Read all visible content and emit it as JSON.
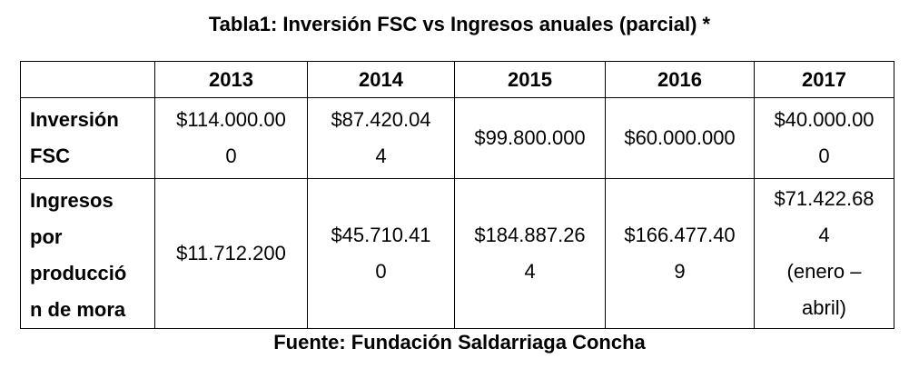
{
  "title": "Tabla1: Inversión FSC vs Ingresos anuales (parcial) *",
  "source": "Fuente: Fundación Saldarriaga Concha",
  "table": {
    "header": [
      "",
      "2013",
      "2014",
      "2015",
      "2016",
      "2017"
    ],
    "rows": [
      {
        "label_lines": [
          "Inversión",
          "FSC"
        ],
        "cells": [
          [
            "$114.000.00",
            "0"
          ],
          [
            "$87.420.04",
            "4"
          ],
          [
            "$99.800.000"
          ],
          [
            "$60.000.000"
          ],
          [
            "$40.000.00",
            "0"
          ]
        ]
      },
      {
        "label_lines": [
          "Ingresos",
          "por",
          "producció",
          "n de mora"
        ],
        "cells": [
          [
            "$11.712.200"
          ],
          [
            "$45.710.41",
            "0"
          ],
          [
            "$184.887.26",
            "4"
          ],
          [
            "$166.477.40",
            "9"
          ],
          [
            "$71.422.68",
            "4",
            "(enero –",
            "abril)"
          ]
        ]
      }
    ]
  }
}
